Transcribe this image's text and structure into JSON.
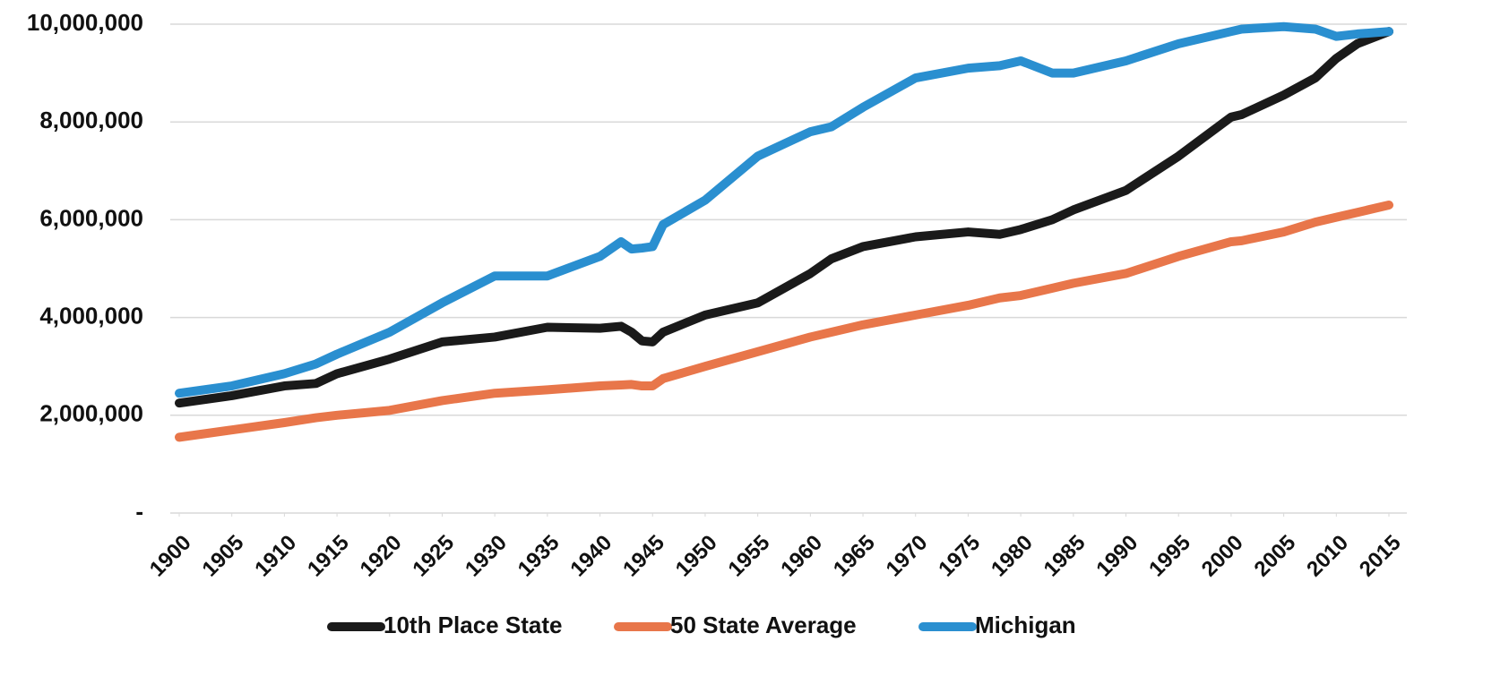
{
  "chart_data": {
    "type": "line",
    "x": [
      1900,
      1905,
      1910,
      1913,
      1915,
      1920,
      1925,
      1930,
      1935,
      1940,
      1942,
      1943,
      1944,
      1945,
      1946,
      1950,
      1955,
      1960,
      1962,
      1965,
      1970,
      1975,
      1978,
      1980,
      1983,
      1985,
      1990,
      1995,
      2000,
      2001,
      2005,
      2008,
      2010,
      2012,
      2015
    ],
    "series": [
      {
        "name": "10th Place State",
        "color": "#1a1a1a",
        "values": [
          2250000,
          2400000,
          2600000,
          2650000,
          2850000,
          3150000,
          3500000,
          3600000,
          3800000,
          3780000,
          3820000,
          3700000,
          3520000,
          3500000,
          3700000,
          4050000,
          4300000,
          4900000,
          5200000,
          5450000,
          5650000,
          5750000,
          5700000,
          5800000,
          6000000,
          6200000,
          6600000,
          7300000,
          8100000,
          8150000,
          8550000,
          8900000,
          9300000,
          9600000,
          9850000
        ]
      },
      {
        "name": "50 State Average",
        "color": "#e8764a",
        "values": [
          1550000,
          1700000,
          1850000,
          1950000,
          2000000,
          2100000,
          2300000,
          2450000,
          2520000,
          2600000,
          2620000,
          2630000,
          2600000,
          2600000,
          2750000,
          3000000,
          3300000,
          3600000,
          3700000,
          3850000,
          4050000,
          4250000,
          4400000,
          4450000,
          4600000,
          4700000,
          4900000,
          5250000,
          5550000,
          5570000,
          5750000,
          5950000,
          6050000,
          6150000,
          6300000
        ]
      },
      {
        "name": "Michigan",
        "color": "#2a8fd0",
        "values": [
          2450000,
          2600000,
          2850000,
          3050000,
          3250000,
          3700000,
          4300000,
          4850000,
          4850000,
          5250000,
          5550000,
          5400000,
          5420000,
          5450000,
          5900000,
          6400000,
          7300000,
          7800000,
          7900000,
          8300000,
          8900000,
          9100000,
          9150000,
          9250000,
          9000000,
          9000000,
          9250000,
          9600000,
          9850000,
          9900000,
          9950000,
          9900000,
          9750000,
          9800000,
          9850000
        ]
      }
    ],
    "xlim": [
      1900,
      2015
    ],
    "xticks": [
      1900,
      1905,
      1910,
      1915,
      1920,
      1925,
      1930,
      1935,
      1940,
      1945,
      1950,
      1955,
      1960,
      1965,
      1970,
      1975,
      1980,
      1985,
      1990,
      1995,
      2000,
      2005,
      2010,
      2015
    ],
    "ylim": [
      0,
      10000000
    ],
    "yticks": [
      {
        "value": 0,
        "label": "-"
      },
      {
        "value": 2000000,
        "label": "2,000,000"
      },
      {
        "value": 4000000,
        "label": "4,000,000"
      },
      {
        "value": 6000000,
        "label": "6,000,000"
      },
      {
        "value": 8000000,
        "label": "8,000,000"
      },
      {
        "value": 10000000,
        "label": "10,000,000"
      }
    ],
    "grid": true,
    "legend": "bottom"
  }
}
